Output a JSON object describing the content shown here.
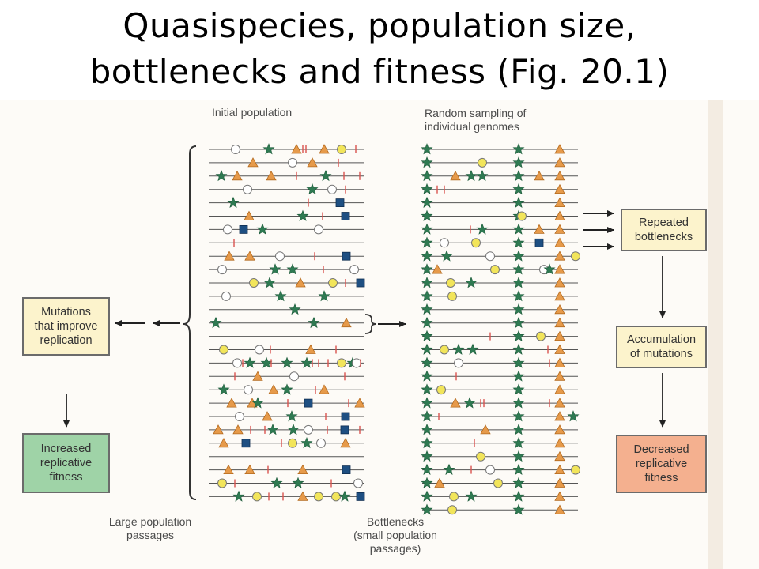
{
  "title": {
    "line1": "Quasispecies, population size,",
    "line2": "bottlenecks and fitness (Fig. 20.1)"
  },
  "figure": {
    "initial_population_label": "Initial population",
    "random_sampling_label": [
      "Random sampling of",
      "individual genomes"
    ],
    "left_box": [
      "Mutations",
      "that improve",
      "replication"
    ],
    "left_result_box": [
      "Increased",
      "replicative",
      "fitness"
    ],
    "right_box_1": [
      "Repeated",
      "bottlenecks"
    ],
    "right_box_2": [
      "Accumulation",
      "of mutations"
    ],
    "right_result_box": [
      "Decreased",
      "replicative",
      "fitness"
    ],
    "bottom_left_label": [
      "Large population",
      "passages"
    ],
    "bottom_mid_label": [
      "Bottlenecks",
      "(small population",
      "passages)"
    ]
  },
  "colors": {
    "line": "#555555",
    "star": "#2f7a52",
    "triangle": "#e69a4a",
    "yellow_circle": "#f2e55a",
    "open_circle": "#ffffff",
    "square": "#1e4f82",
    "tick": "#d9534f",
    "cream_box": "#fcf3cc",
    "green_box": "#9fd3a7",
    "salmon_box": "#f4b08f"
  },
  "genomes": {
    "left": [
      [
        [
          "tick",
          300
        ],
        [
          "ocirc",
          298
        ],
        [
          "star",
          340
        ],
        [
          "tri",
          375
        ],
        [
          "tick",
          383
        ],
        [
          "tick",
          387
        ],
        [
          "tri",
          410
        ],
        [
          "ycirc",
          432
        ],
        [
          "tick",
          450
        ]
      ],
      [
        [
          "tri",
          320
        ],
        [
          "ocirc",
          370
        ],
        [
          "tri",
          395
        ],
        [
          "tick",
          428
        ]
      ],
      [
        [
          "star",
          280
        ],
        [
          "tri",
          300
        ],
        [
          "tri",
          343
        ],
        [
          "tick",
          375
        ],
        [
          "star",
          412
        ],
        [
          "tick",
          435
        ],
        [
          "tick",
          455
        ]
      ],
      [
        [
          "ocirc",
          313
        ],
        [
          "star",
          395
        ],
        [
          "ocirc",
          420
        ],
        [
          "tick",
          437
        ]
      ],
      [
        [
          "star",
          295
        ],
        [
          "tick",
          390
        ],
        [
          "square",
          430
        ]
      ],
      [
        [
          "tri",
          315
        ],
        [
          "star",
          383
        ],
        [
          "tick",
          408
        ],
        [
          "square",
          437
        ]
      ],
      [
        [
          "ocirc",
          288
        ],
        [
          "square",
          308
        ],
        [
          "star",
          332
        ],
        [
          "ocirc",
          403
        ]
      ],
      [
        [
          "tick",
          296
        ]
      ],
      [
        [
          "tri",
          290
        ],
        [
          "tri",
          316
        ],
        [
          "ocirc",
          354
        ],
        [
          "tick",
          398
        ],
        [
          "square",
          438
        ]
      ],
      [
        [
          "ocirc",
          281
        ],
        [
          "star",
          348
        ],
        [
          "star",
          370
        ],
        [
          "tick",
          409
        ],
        [
          "ocirc",
          448
        ]
      ],
      [
        [
          "ycirc",
          321
        ],
        [
          "star",
          341
        ],
        [
          "tri",
          380
        ],
        [
          "ycirc",
          421
        ],
        [
          "tick",
          437
        ],
        [
          "square",
          456
        ]
      ],
      [
        [
          "ocirc",
          286
        ],
        [
          "star",
          355
        ],
        [
          "star",
          410
        ]
      ],
      [
        [
          "star",
          373
        ]
      ],
      [
        [
          "star",
          273
        ],
        [
          "star",
          397
        ],
        [
          "tri",
          438
        ]
      ],
      [],
      [
        [
          "ycirc",
          283
        ],
        [
          "ocirc",
          328
        ],
        [
          "tick",
          342
        ],
        [
          "tri",
          393
        ],
        [
          "tick",
          425
        ]
      ],
      [
        [
          "ocirc",
          300
        ],
        [
          "tick",
          307
        ],
        [
          "star",
          316
        ],
        [
          "star",
          337
        ],
        [
          "tick",
          343
        ],
        [
          "star",
          363
        ],
        [
          "star",
          388
        ],
        [
          "tick",
          395
        ],
        [
          "tick",
          403
        ],
        [
          "tick",
          415
        ],
        [
          "ycirc",
          432
        ],
        [
          "star",
          446
        ],
        [
          "ocirc",
          451
        ],
        [
          "tick",
          456
        ]
      ],
      [
        [
          "tick",
          297
        ],
        [
          "tri",
          326
        ],
        [
          "ocirc",
          372
        ],
        [
          "tick",
          436
        ]
      ],
      [
        [
          "star",
          283
        ],
        [
          "ocirc",
          314
        ],
        [
          "tri",
          346
        ],
        [
          "star",
          363
        ],
        [
          "tick",
          399
        ],
        [
          "tri",
          410
        ]
      ],
      [
        [
          "tri",
          293
        ],
        [
          "tri",
          319
        ],
        [
          "star",
          326
        ],
        [
          "tick",
          364
        ],
        [
          "square",
          390
        ],
        [
          "tick",
          441
        ],
        [
          "tri",
          455
        ]
      ],
      [
        [
          "ocirc",
          303
        ],
        [
          "tri",
          338
        ],
        [
          "star",
          369
        ],
        [
          "tick",
          412
        ],
        [
          "square",
          437
        ]
      ],
      [
        [
          "tri",
          276
        ],
        [
          "tri",
          301
        ],
        [
          "tick",
          317
        ],
        [
          "tick",
          335
        ],
        [
          "star",
          345
        ],
        [
          "star",
          371
        ],
        [
          "ocirc",
          390
        ],
        [
          "tick",
          414
        ],
        [
          "square",
          436
        ],
        [
          "tick",
          455
        ]
      ],
      [
        [
          "tri",
          283
        ],
        [
          "square",
          311
        ],
        [
          "tick",
          356
        ],
        [
          "ycirc",
          370
        ],
        [
          "star",
          388
        ],
        [
          "ocirc",
          406
        ],
        [
          "tri",
          437
        ]
      ],
      [],
      [
        [
          "tri",
          289
        ],
        [
          "tri",
          316
        ],
        [
          "tick",
          339
        ],
        [
          "tri",
          383
        ],
        [
          "square",
          438
        ]
      ],
      [
        [
          "ycirc",
          281
        ],
        [
          "tick",
          297
        ],
        [
          "star",
          350
        ],
        [
          "star",
          377
        ],
        [
          "tick",
          419
        ],
        [
          "ocirc",
          453
        ]
      ],
      [
        [
          "star",
          302
        ],
        [
          "ycirc",
          325
        ],
        [
          "tick",
          340
        ],
        [
          "tick",
          358
        ],
        [
          "tri",
          383
        ],
        [
          "ycirc",
          403
        ],
        [
          "ycirc",
          425
        ],
        [
          "star",
          436
        ],
        [
          "square",
          456
        ]
      ]
    ],
    "right": [
      [
        [
          "star",
          540
        ],
        [
          "star",
          656
        ],
        [
          "tri",
          708
        ]
      ],
      [
        [
          "star",
          540
        ],
        [
          "ycirc",
          610
        ],
        [
          "star",
          656
        ],
        [
          "tri",
          708
        ]
      ],
      [
        [
          "star",
          540
        ],
        [
          "tri",
          576
        ],
        [
          "star",
          596
        ],
        [
          "star",
          610
        ],
        [
          "star",
          656
        ],
        [
          "tri",
          682
        ],
        [
          "tri",
          708
        ]
      ],
      [
        [
          "star",
          540
        ],
        [
          "tick",
          553
        ],
        [
          "tick",
          562
        ],
        [
          "star",
          656
        ],
        [
          "tri",
          708
        ]
      ],
      [
        [
          "star",
          540
        ],
        [
          "star",
          656
        ],
        [
          "tri",
          708
        ]
      ],
      [
        [
          "star",
          540
        ],
        [
          "star",
          656
        ],
        [
          "ycirc",
          660
        ],
        [
          "tri",
          708
        ]
      ],
      [
        [
          "star",
          540
        ],
        [
          "tick",
          595
        ],
        [
          "star",
          610
        ],
        [
          "star",
          656
        ],
        [
          "tri",
          682
        ],
        [
          "tri",
          708
        ]
      ],
      [
        [
          "star",
          540
        ],
        [
          "ocirc",
          562
        ],
        [
          "ycirc",
          602
        ],
        [
          "star",
          656
        ],
        [
          "square",
          682
        ],
        [
          "tri",
          708
        ]
      ],
      [
        [
          "star",
          540
        ],
        [
          "star",
          565
        ],
        [
          "ocirc",
          620
        ],
        [
          "star",
          656
        ],
        [
          "tri",
          708
        ],
        [
          "ycirc",
          728
        ]
      ],
      [
        [
          "star",
          540
        ],
        [
          "tri",
          553
        ],
        [
          "ycirc",
          626
        ],
        [
          "star",
          656
        ],
        [
          "ocirc",
          688
        ],
        [
          "star",
          695
        ],
        [
          "tri",
          708
        ]
      ],
      [
        [
          "star",
          540
        ],
        [
          "ycirc",
          570
        ],
        [
          "star",
          596
        ],
        [
          "star",
          656
        ],
        [
          "tri",
          708
        ]
      ],
      [
        [
          "star",
          540
        ],
        [
          "ycirc",
          572
        ],
        [
          "star",
          656
        ],
        [
          "tri",
          708
        ]
      ],
      [
        [
          "star",
          540
        ],
        [
          "star",
          656
        ],
        [
          "tri",
          708
        ]
      ],
      [
        [
          "star",
          540
        ],
        [
          "star",
          656
        ],
        [
          "tri",
          708
        ]
      ],
      [
        [
          "star",
          540
        ],
        [
          "tick",
          620
        ],
        [
          "star",
          656
        ],
        [
          "ycirc",
          684
        ],
        [
          "tri",
          708
        ]
      ],
      [
        [
          "star",
          540
        ],
        [
          "ycirc",
          562
        ],
        [
          "star",
          580
        ],
        [
          "star",
          598
        ],
        [
          "star",
          656
        ],
        [
          "tick",
          693
        ],
        [
          "tri",
          708
        ]
      ],
      [
        [
          "star",
          540
        ],
        [
          "ocirc",
          580
        ],
        [
          "star",
          656
        ],
        [
          "tick",
          695
        ],
        [
          "tri",
          708
        ]
      ],
      [
        [
          "star",
          540
        ],
        [
          "tick",
          577
        ],
        [
          "star",
          656
        ],
        [
          "tri",
          708
        ]
      ],
      [
        [
          "star",
          540
        ],
        [
          "ycirc",
          558
        ],
        [
          "star",
          656
        ],
        [
          "tri",
          708
        ]
      ],
      [
        [
          "star",
          540
        ],
        [
          "tri",
          576
        ],
        [
          "star",
          594
        ],
        [
          "tick",
          608
        ],
        [
          "tick",
          612
        ],
        [
          "star",
          656
        ],
        [
          "tick",
          695
        ],
        [
          "tri",
          708
        ]
      ],
      [
        [
          "star",
          540
        ],
        [
          "tick",
          555
        ],
        [
          "star",
          656
        ],
        [
          "tri",
          708
        ],
        [
          "star",
          725
        ]
      ],
      [
        [
          "star",
          540
        ],
        [
          "tri",
          614
        ],
        [
          "star",
          656
        ],
        [
          "tri",
          708
        ]
      ],
      [
        [
          "star",
          540
        ],
        [
          "star",
          656
        ],
        [
          "tick",
          600
        ],
        [
          "tri",
          708
        ]
      ],
      [
        [
          "star",
          540
        ],
        [
          "ycirc",
          608
        ],
        [
          "star",
          656
        ],
        [
          "tri",
          708
        ]
      ],
      [
        [
          "star",
          540
        ],
        [
          "star",
          568
        ],
        [
          "tick",
          596
        ],
        [
          "ocirc",
          620
        ],
        [
          "star",
          656
        ],
        [
          "tri",
          708
        ],
        [
          "ycirc",
          728
        ]
      ],
      [
        [
          "star",
          540
        ],
        [
          "tri",
          556
        ],
        [
          "ycirc",
          630
        ],
        [
          "star",
          656
        ],
        [
          "tri",
          708
        ]
      ],
      [
        [
          "star",
          540
        ],
        [
          "ycirc",
          574
        ],
        [
          "star",
          596
        ],
        [
          "star",
          656
        ],
        [
          "tri",
          708
        ]
      ],
      [
        [
          "star",
          540
        ],
        [
          "ycirc",
          572
        ],
        [
          "star",
          656
        ],
        [
          "tri",
          708
        ]
      ]
    ]
  }
}
